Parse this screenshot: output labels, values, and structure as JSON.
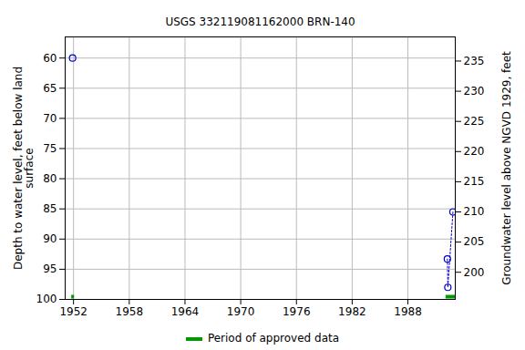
{
  "chart_data": {
    "type": "line",
    "title": "USGS 332119081162000 BRN-140",
    "x_label": "",
    "y_label": "Depth to water level, feet below land\nsurface",
    "y2_label": "Groundwater level above NGVD 1929, feet",
    "x": [
      1951.9,
      1952,
      1992.25,
      1992.3,
      1992.85
    ],
    "values": [
      60,
      null,
      93.3,
      98,
      85.5
    ],
    "color": "#0000cc",
    "marker": "circle",
    "line_style": "dotted",
    "xlim": [
      1951.1,
      1993.1
    ],
    "xticks": [
      1952,
      1958,
      1964,
      1970,
      1976,
      1982,
      1988
    ],
    "ylim": [
      100,
      56.5
    ],
    "yticks": [
      60,
      65,
      70,
      75,
      80,
      85,
      90,
      95,
      100
    ],
    "y2lim": [
      195.5,
      239
    ],
    "y2ticks": [
      200,
      205,
      210,
      215,
      220,
      225,
      230,
      235
    ],
    "approved_periods": [
      [
        1951.8,
        1952.1
      ],
      [
        1992.1,
        1993.1
      ]
    ],
    "approved_label": "Period of approved data",
    "approved_color": "#009900",
    "grid": true
  }
}
